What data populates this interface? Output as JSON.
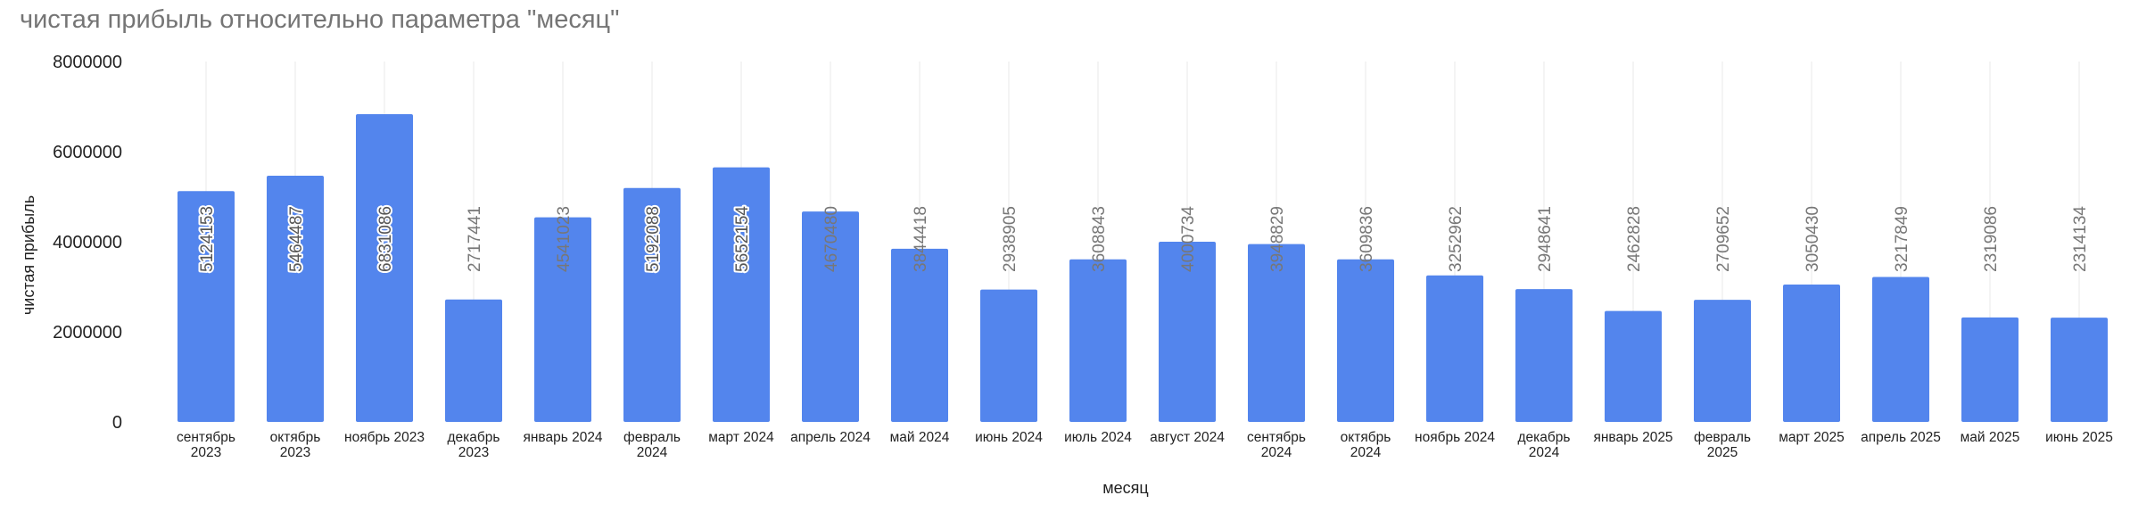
{
  "chart_data": {
    "type": "bar",
    "title": "чистая прибыль относительно параметра \"месяц\"",
    "xlabel": "месяц",
    "ylabel": "чистая прибыль",
    "ylim": [
      0,
      8000000
    ],
    "yticks": [
      "0",
      "2000000",
      "4000000",
      "6000000",
      "8000000"
    ],
    "grid": "vertical",
    "legend": "none",
    "bar_color": "#5385ed",
    "categories": [
      "сентябрь 2023",
      "октябрь 2023",
      "ноябрь 2023",
      "декабрь 2023",
      "январь 2024",
      "февраль 2024",
      "март 2024",
      "апрель 2024",
      "май 2024",
      "июнь 2024",
      "июль 2024",
      "август 2024",
      "сентябрь 2024",
      "октябрь 2024",
      "ноябрь 2024",
      "декабрь 2024",
      "январь 2025",
      "февраль 2025",
      "март 2025",
      "апрель 2025",
      "май 2025",
      "июнь 2025"
    ],
    "tick_labels": [
      [
        "сентябрь",
        "2023"
      ],
      [
        "октябрь",
        "2023"
      ],
      [
        "ноябрь 2023"
      ],
      [
        "декабрь",
        "2023"
      ],
      [
        "январь 2024"
      ],
      [
        "февраль",
        "2024"
      ],
      [
        "март 2024"
      ],
      [
        "апрель 2024"
      ],
      [
        "май 2024"
      ],
      [
        "июнь 2024"
      ],
      [
        "июль 2024"
      ],
      [
        "август 2024"
      ],
      [
        "сентябрь",
        "2024"
      ],
      [
        "октябрь",
        "2024"
      ],
      [
        "ноябрь 2024"
      ],
      [
        "декабрь",
        "2024"
      ],
      [
        "январь 2025"
      ],
      [
        "февраль",
        "2025"
      ],
      [
        "март 2025"
      ],
      [
        "апрель 2025"
      ],
      [
        "май 2025"
      ],
      [
        "июнь 2025"
      ]
    ],
    "values": [
      5124153,
      5464487,
      6831086,
      2717441,
      4541023,
      5192088,
      5652154,
      4670480,
      3844418,
      2938905,
      3608843,
      4000734,
      3948829,
      3609836,
      3252962,
      2948641,
      2462828,
      2709652,
      3050430,
      3217849,
      2319086,
      2314134
    ],
    "data_labels": [
      "5124153",
      "5464487",
      "6831086",
      "2717441",
      "4541023",
      "5192088",
      "5652154",
      "4670480",
      "3844418",
      "2938905",
      "3608843",
      "4000734",
      "3948829",
      "3609836",
      "3252962",
      "2948641",
      "2462828",
      "2709652",
      "3050430",
      "3217849",
      "2319086",
      "2314134"
    ]
  }
}
